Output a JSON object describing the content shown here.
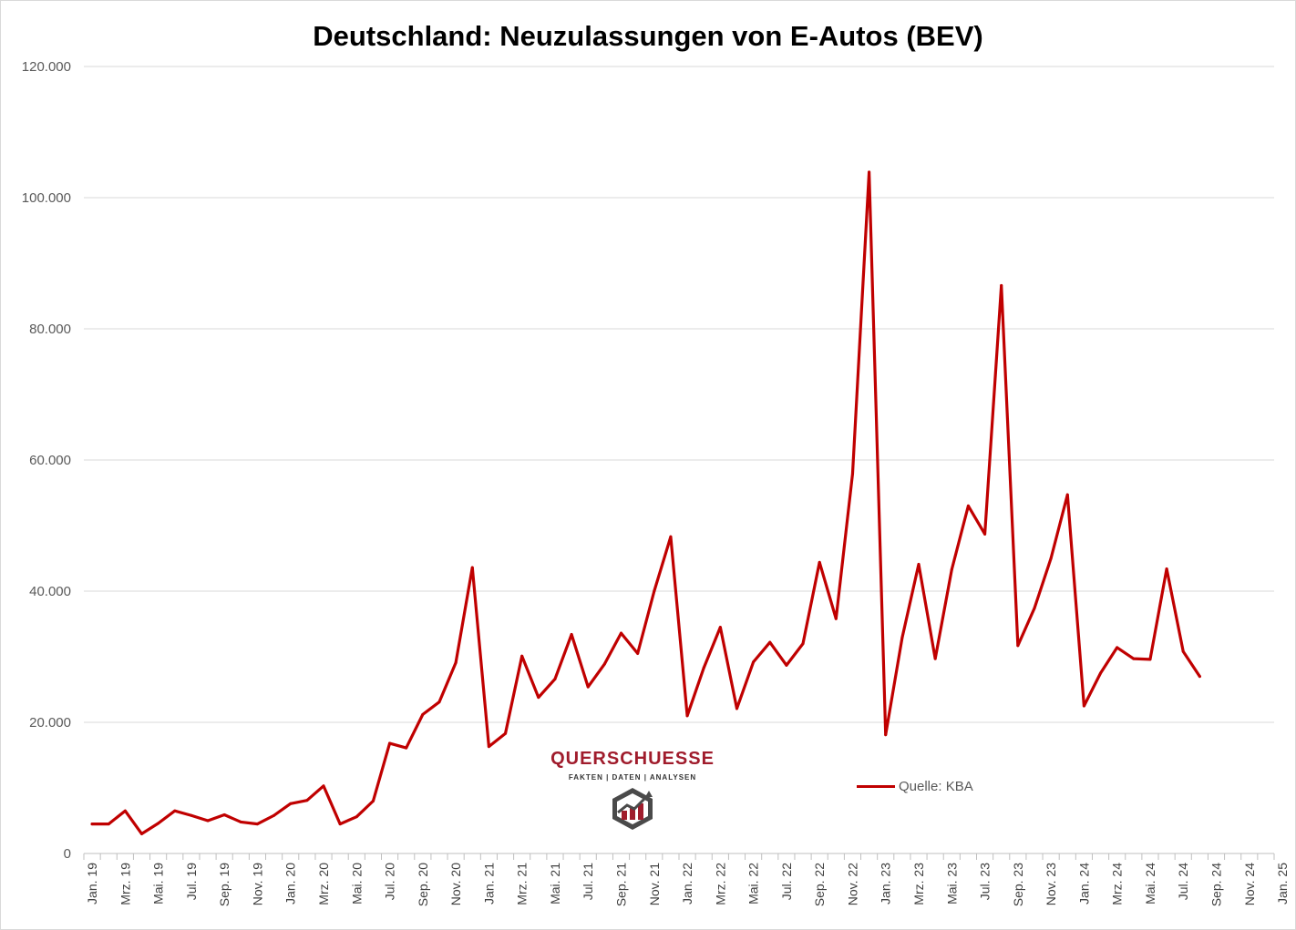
{
  "chart_data": {
    "type": "line",
    "title": "Deutschland: Neuzulassungen  von E-Autos (BEV)",
    "xlabel": "",
    "ylabel": "",
    "ylim": [
      0,
      120000
    ],
    "y_ticks": [
      "0",
      "20.000",
      "40.000",
      "60.000",
      "80.000",
      "100.000",
      "120.000"
    ],
    "y_tick_values": [
      0,
      20000,
      40000,
      60000,
      80000,
      100000,
      120000
    ],
    "x_tick_labels": [
      "Jan. 19",
      "Mrz. 19",
      "Mai. 19",
      "Jul. 19",
      "Sep. 19",
      "Nov. 19",
      "Jan. 20",
      "Mrz. 20",
      "Mai. 20",
      "Jul. 20",
      "Sep. 20",
      "Nov. 20",
      "Jan. 21",
      "Mrz. 21",
      "Mai. 21",
      "Jul. 21",
      "Sep. 21",
      "Nov. 21",
      "Jan. 22",
      "Mrz. 22",
      "Mai. 22",
      "Jul. 22",
      "Sep. 22",
      "Nov. 22",
      "Jan. 23",
      "Mrz. 23",
      "Mai. 23",
      "Jul. 23",
      "Sep. 23",
      "Nov. 23",
      "Jan. 24",
      "Mrz. 24",
      "Mai. 24",
      "Jul. 24",
      "Sep. 24",
      "Nov. 24",
      "Jan. 25"
    ],
    "x_range": [
      "Jan. 19",
      "Jan. 25"
    ],
    "grid": true,
    "legend_position": "bottom-center",
    "series": [
      {
        "name": "Quelle: KBA",
        "color": "#c00000",
        "x": [
          "Jan. 19",
          "Feb. 19",
          "Mrz. 19",
          "Apr. 19",
          "Mai. 19",
          "Jun. 19",
          "Jul. 19",
          "Aug. 19",
          "Sep. 19",
          "Okt. 19",
          "Nov. 19",
          "Dez. 19",
          "Jan. 20",
          "Feb. 20",
          "Mrz. 20",
          "Apr. 20",
          "Mai. 20",
          "Jun. 20",
          "Jul. 20",
          "Aug. 20",
          "Sep. 20",
          "Okt. 20",
          "Nov. 20",
          "Dez. 20",
          "Jan. 21",
          "Feb. 21",
          "Mrz. 21",
          "Apr. 21",
          "Mai. 21",
          "Jun. 21",
          "Jul. 21",
          "Aug. 21",
          "Sep. 21",
          "Okt. 21",
          "Nov. 21",
          "Dez. 21",
          "Jan. 22",
          "Feb. 22",
          "Mrz. 22",
          "Apr. 22",
          "Mai. 22",
          "Jun. 22",
          "Jul. 22",
          "Aug. 22",
          "Sep. 22",
          "Okt. 22",
          "Nov. 22",
          "Dez. 22",
          "Jan. 23",
          "Feb. 23",
          "Mrz. 23",
          "Apr. 23",
          "Mai. 23",
          "Jun. 23",
          "Jul. 23",
          "Aug. 23",
          "Sep. 23",
          "Okt. 23",
          "Nov. 23",
          "Dez. 23",
          "Jan. 24",
          "Feb. 24",
          "Mrz. 24",
          "Apr. 24",
          "Mai. 24",
          "Jun. 24",
          "Jul. 24",
          "Aug. 24"
        ],
        "values": [
          4500,
          4500,
          6500,
          3000,
          4600,
          6500,
          5800,
          5000,
          5900,
          4800,
          4500,
          5800,
          7600,
          8100,
          10300,
          4500,
          5600,
          8000,
          16800,
          16100,
          21200,
          23100,
          29100,
          43600,
          16300,
          18300,
          30100,
          23800,
          26600,
          33400,
          25400,
          28900,
          33600,
          30500,
          40000,
          48300,
          21000,
          28300,
          34500,
          22100,
          29200,
          32200,
          28700,
          32000,
          44400,
          35800,
          57900,
          103900,
          18100,
          32900,
          44100,
          29700,
          43300,
          53000,
          48700,
          86600,
          31700,
          37400,
          45000,
          54700,
          22500,
          27500,
          31400,
          29700,
          29600,
          43400,
          30800,
          27000
        ]
      }
    ]
  },
  "logo": {
    "name": "QUERSCHUESSE",
    "tagline": "FAKTEN | DATEN | ANALYSEN"
  }
}
